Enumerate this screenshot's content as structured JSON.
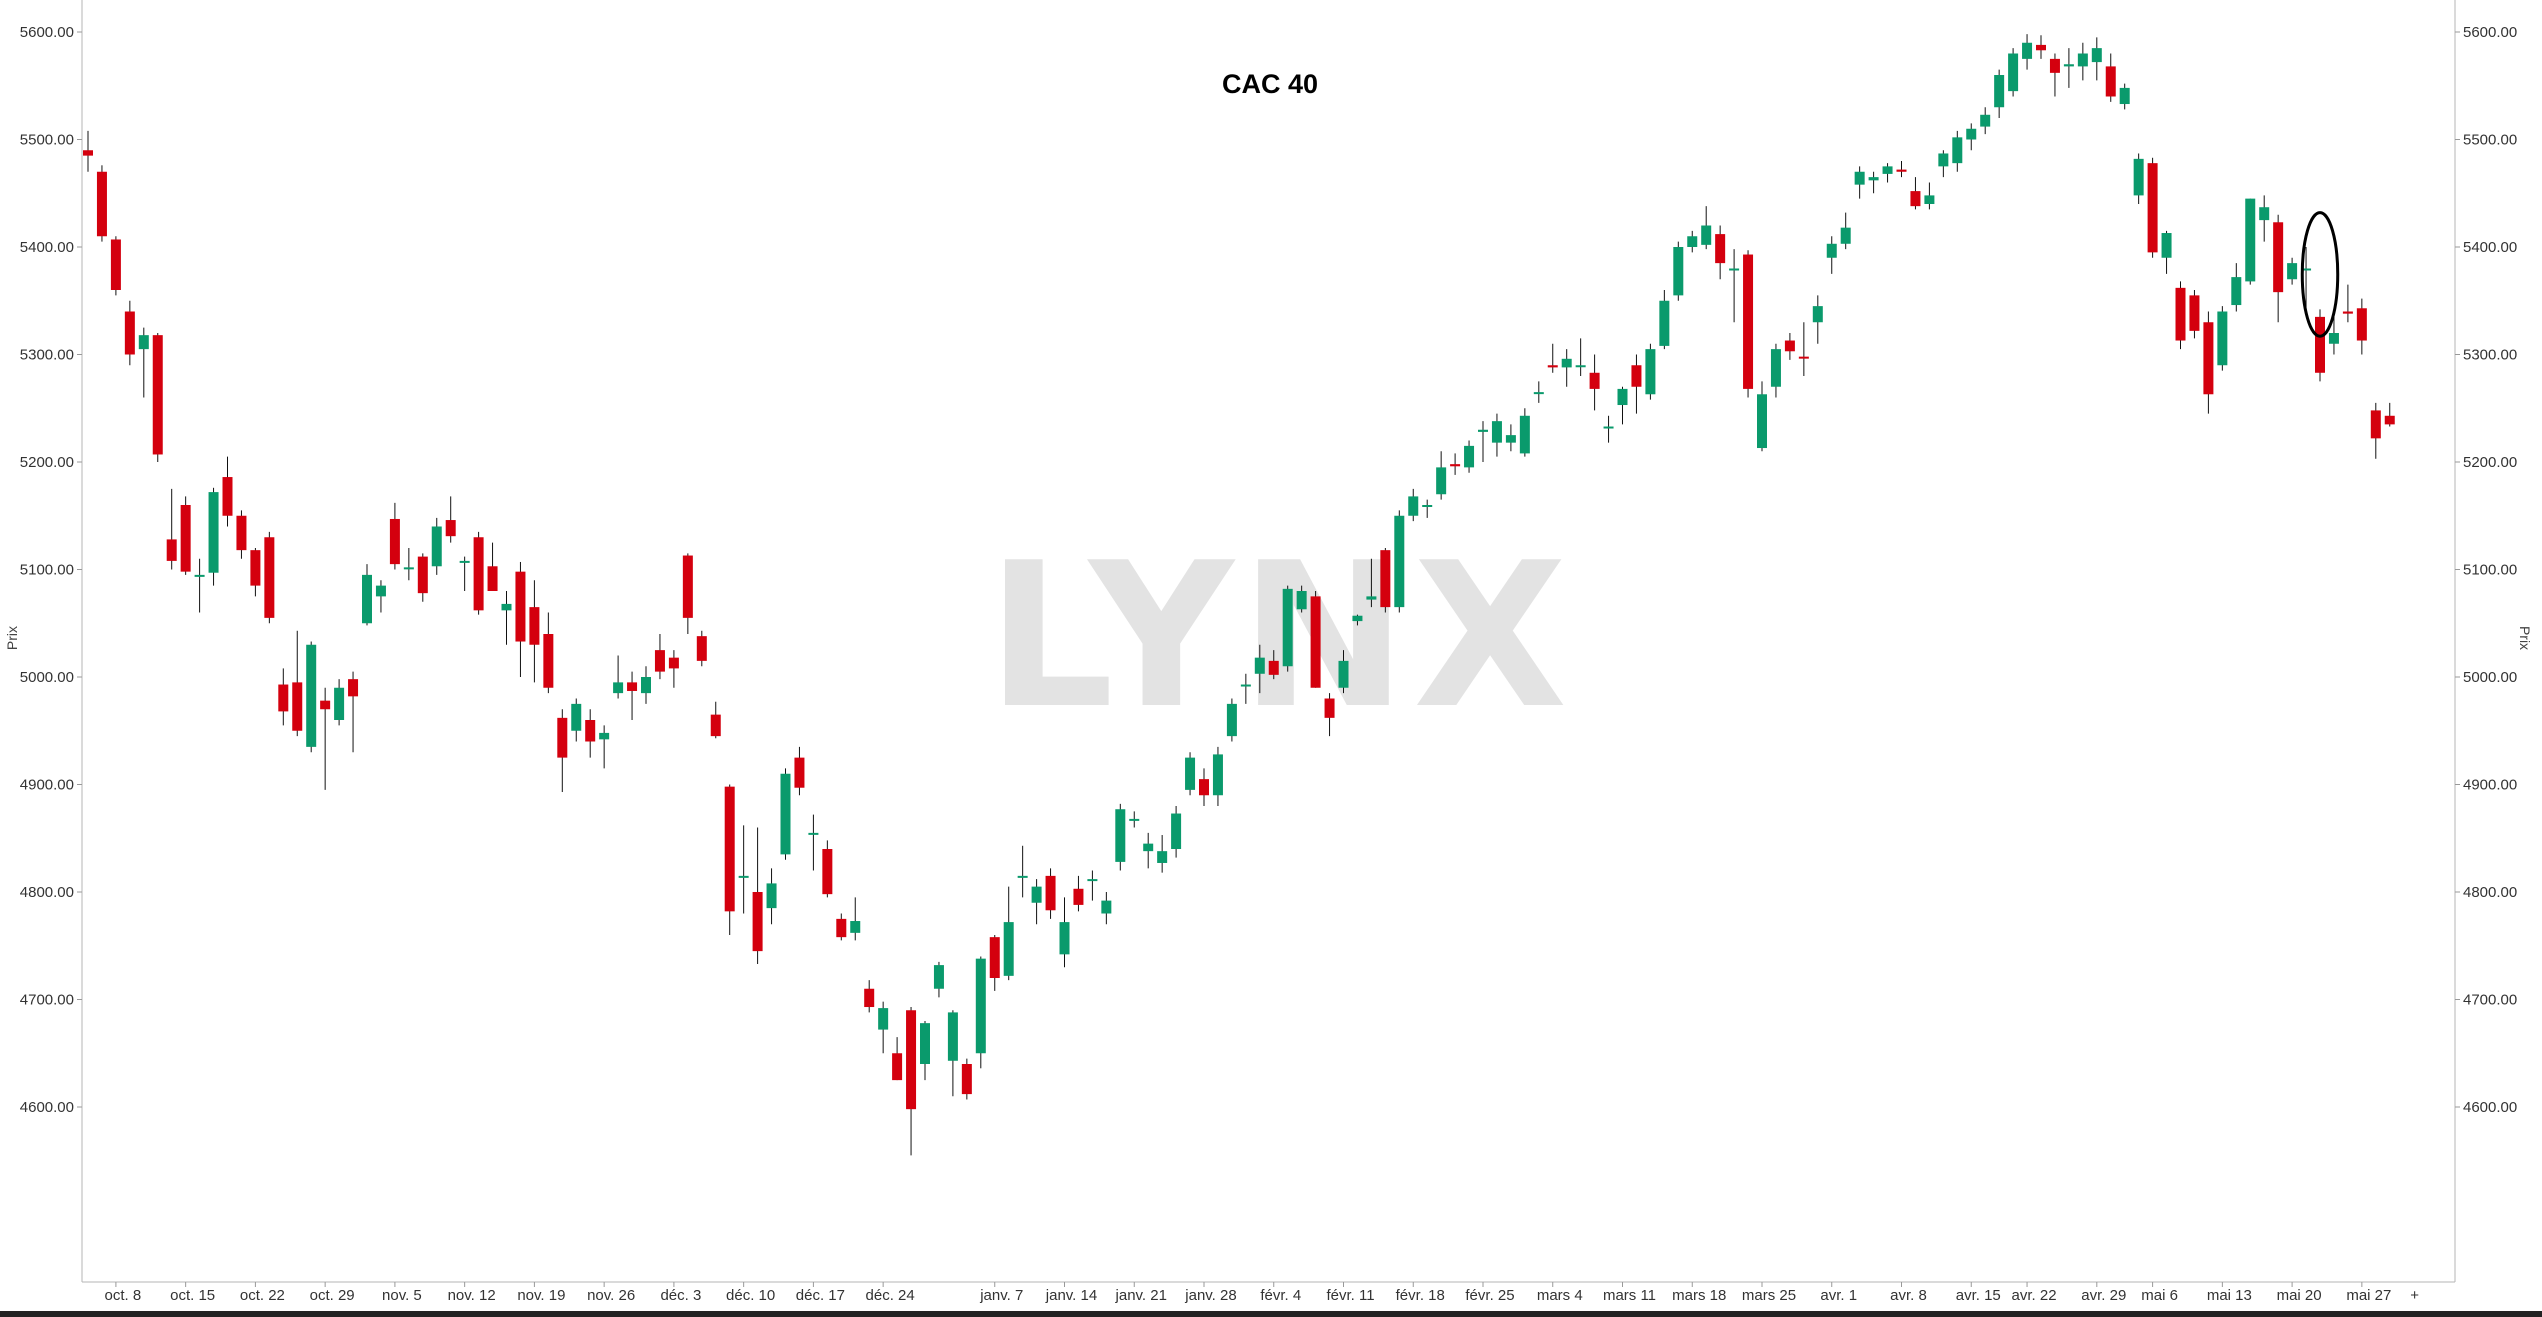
{
  "chart_data": {
    "type": "candlestick",
    "title": "CAC 40",
    "watermark": "LYNX",
    "ylabel_left": "Prix",
    "ylabel_right": "Prix",
    "ylim": [
      4520,
      5600
    ],
    "yticks": [
      "4600.00",
      "4700.00",
      "4800.00",
      "4900.00",
      "5000.00",
      "5100.00",
      "5200.00",
      "5300.00",
      "5400.00",
      "5500.00",
      "5600.00"
    ],
    "xtick_labels": [
      {
        "label": "oct. 8",
        "index": 2
      },
      {
        "label": "oct. 15",
        "index": 7
      },
      {
        "label": "oct. 22",
        "index": 12
      },
      {
        "label": "oct. 29",
        "index": 17
      },
      {
        "label": "nov. 5",
        "index": 22
      },
      {
        "label": "nov. 12",
        "index": 27
      },
      {
        "label": "nov. 19",
        "index": 32
      },
      {
        "label": "nov. 26",
        "index": 37
      },
      {
        "label": "déc. 3",
        "index": 42
      },
      {
        "label": "déc. 10",
        "index": 47
      },
      {
        "label": "déc. 17",
        "index": 52
      },
      {
        "label": "déc. 24",
        "index": 57
      },
      {
        "label": "janv. 7",
        "index": 65
      },
      {
        "label": "janv. 14",
        "index": 70
      },
      {
        "label": "janv. 21",
        "index": 75
      },
      {
        "label": "janv. 28",
        "index": 80
      },
      {
        "label": "févr. 4",
        "index": 85
      },
      {
        "label": "févr. 11",
        "index": 90
      },
      {
        "label": "févr. 18",
        "index": 95
      },
      {
        "label": "févr. 25",
        "index": 100
      },
      {
        "label": "mars 4",
        "index": 105
      },
      {
        "label": "mars 11",
        "index": 110
      },
      {
        "label": "mars 18",
        "index": 115
      },
      {
        "label": "mars 25",
        "index": 120
      },
      {
        "label": "avr. 1",
        "index": 125
      },
      {
        "label": "avr. 8",
        "index": 130
      },
      {
        "label": "avr. 15",
        "index": 135
      },
      {
        "label": "avr. 22",
        "index": 139
      },
      {
        "label": "avr. 29",
        "index": 144
      },
      {
        "label": "mai 6",
        "index": 148
      },
      {
        "label": "mai 13",
        "index": 153
      },
      {
        "label": "mai 20",
        "index": 158
      },
      {
        "label": "mai 27",
        "index": 163
      }
    ],
    "end_marker": "+",
    "colors": {
      "up": "#0a9a6c",
      "down": "#d4000e",
      "wick": "#111111",
      "axis": "#999999",
      "annotation": "#000000"
    },
    "annotation": {
      "type": "ellipse",
      "center_index": 160,
      "center_price": 5370,
      "half_width_bars": 1.2,
      "price_top": 5432,
      "price_bottom": 5317
    },
    "candles": [
      {
        "o": 5490,
        "h": 5508,
        "l": 5470,
        "c": 5485
      },
      {
        "o": 5470,
        "h": 5476,
        "l": 5405,
        "c": 5410
      },
      {
        "o": 5407,
        "h": 5410,
        "l": 5355,
        "c": 5360
      },
      {
        "o": 5340,
        "h": 5350,
        "l": 5290,
        "c": 5300
      },
      {
        "o": 5305,
        "h": 5325,
        "l": 5260,
        "c": 5318
      },
      {
        "o": 5318,
        "h": 5320,
        "l": 5200,
        "c": 5207
      },
      {
        "o": 5128,
        "h": 5175,
        "l": 5100,
        "c": 5108
      },
      {
        "o": 5160,
        "h": 5168,
        "l": 5095,
        "c": 5098
      },
      {
        "o": 5095,
        "h": 5110,
        "l": 5060,
        "c": 5095
      },
      {
        "o": 5097,
        "h": 5176,
        "l": 5085,
        "c": 5172
      },
      {
        "o": 5186,
        "h": 5205,
        "l": 5140,
        "c": 5150
      },
      {
        "o": 5150,
        "h": 5155,
        "l": 5110,
        "c": 5118
      },
      {
        "o": 5118,
        "h": 5120,
        "l": 5075,
        "c": 5085
      },
      {
        "o": 5130,
        "h": 5135,
        "l": 5050,
        "c": 5055
      },
      {
        "o": 4993,
        "h": 5008,
        "l": 4955,
        "c": 4968
      },
      {
        "o": 4995,
        "h": 5043,
        "l": 4945,
        "c": 4950
      },
      {
        "o": 4935,
        "h": 5033,
        "l": 4930,
        "c": 5030
      },
      {
        "o": 4978,
        "h": 4990,
        "l": 4895,
        "c": 4970
      },
      {
        "o": 4960,
        "h": 4998,
        "l": 4955,
        "c": 4990
      },
      {
        "o": 4998,
        "h": 5005,
        "l": 4930,
        "c": 4982
      },
      {
        "o": 5050,
        "h": 5105,
        "l": 5048,
        "c": 5095
      },
      {
        "o": 5075,
        "h": 5090,
        "l": 5060,
        "c": 5085
      },
      {
        "o": 5147,
        "h": 5162,
        "l": 5100,
        "c": 5105
      },
      {
        "o": 5102,
        "h": 5120,
        "l": 5090,
        "c": 5102
      },
      {
        "o": 5112,
        "h": 5115,
        "l": 5070,
        "c": 5078
      },
      {
        "o": 5103,
        "h": 5148,
        "l": 5095,
        "c": 5140
      },
      {
        "o": 5146,
        "h": 5168,
        "l": 5125,
        "c": 5131
      },
      {
        "o": 5107,
        "h": 5112,
        "l": 5080,
        "c": 5108
      },
      {
        "o": 5130,
        "h": 5135,
        "l": 5058,
        "c": 5062
      },
      {
        "o": 5103,
        "h": 5125,
        "l": 5080,
        "c": 5080
      },
      {
        "o": 5062,
        "h": 5080,
        "l": 5030,
        "c": 5068
      },
      {
        "o": 5098,
        "h": 5107,
        "l": 5000,
        "c": 5033
      },
      {
        "o": 5065,
        "h": 5090,
        "l": 4995,
        "c": 5030
      },
      {
        "o": 5040,
        "h": 5060,
        "l": 4985,
        "c": 4990
      },
      {
        "o": 4962,
        "h": 4970,
        "l": 4893,
        "c": 4925
      },
      {
        "o": 4950,
        "h": 4980,
        "l": 4940,
        "c": 4975
      },
      {
        "o": 4960,
        "h": 4970,
        "l": 4925,
        "c": 4940
      },
      {
        "o": 4942,
        "h": 4955,
        "l": 4915,
        "c": 4948
      },
      {
        "o": 4985,
        "h": 5020,
        "l": 4980,
        "c": 4995
      },
      {
        "o": 4995,
        "h": 5005,
        "l": 4960,
        "c": 4987
      },
      {
        "o": 4985,
        "h": 5010,
        "l": 4975,
        "c": 5000
      },
      {
        "o": 5025,
        "h": 5040,
        "l": 4998,
        "c": 5005
      },
      {
        "o": 5018,
        "h": 5025,
        "l": 4990,
        "c": 5008
      },
      {
        "o": 5113,
        "h": 5115,
        "l": 5040,
        "c": 5055
      },
      {
        "o": 5038,
        "h": 5043,
        "l": 5010,
        "c": 5015
      },
      {
        "o": 4965,
        "h": 4977,
        "l": 4943,
        "c": 4945
      },
      {
        "o": 4898,
        "h": 4900,
        "l": 4760,
        "c": 4782
      },
      {
        "o": 4815,
        "h": 4862,
        "l": 4780,
        "c": 4815
      },
      {
        "o": 4800,
        "h": 4860,
        "l": 4733,
        "c": 4745
      },
      {
        "o": 4785,
        "h": 4822,
        "l": 4770,
        "c": 4808
      },
      {
        "o": 4835,
        "h": 4915,
        "l": 4830,
        "c": 4910
      },
      {
        "o": 4925,
        "h": 4935,
        "l": 4890,
        "c": 4897
      },
      {
        "o": 4855,
        "h": 4872,
        "l": 4820,
        "c": 4855
      },
      {
        "o": 4840,
        "h": 4848,
        "l": 4795,
        "c": 4798
      },
      {
        "o": 4775,
        "h": 4780,
        "l": 4755,
        "c": 4758
      },
      {
        "o": 4762,
        "h": 4795,
        "l": 4755,
        "c": 4773
      },
      {
        "o": 4710,
        "h": 4718,
        "l": 4688,
        "c": 4693
      },
      {
        "o": 4672,
        "h": 4698,
        "l": 4650,
        "c": 4692
      },
      {
        "o": 4650,
        "h": 4665,
        "l": 4625,
        "c": 4625
      },
      {
        "o": 4690,
        "h": 4693,
        "l": 4555,
        "c": 4598
      },
      {
        "o": 4640,
        "h": 4680,
        "l": 4625,
        "c": 4678
      },
      {
        "o": 4710,
        "h": 4735,
        "l": 4702,
        "c": 4732
      },
      {
        "o": 4643,
        "h": 4690,
        "l": 4610,
        "c": 4688
      },
      {
        "o": 4640,
        "h": 4645,
        "l": 4607,
        "c": 4612
      },
      {
        "o": 4650,
        "h": 4740,
        "l": 4636,
        "c": 4738
      },
      {
        "o": 4758,
        "h": 4760,
        "l": 4708,
        "c": 4720
      },
      {
        "o": 4722,
        "h": 4805,
        "l": 4718,
        "c": 4772
      },
      {
        "o": 4815,
        "h": 4843,
        "l": 4795,
        "c": 4815
      },
      {
        "o": 4790,
        "h": 4812,
        "l": 4770,
        "c": 4805
      },
      {
        "o": 4815,
        "h": 4822,
        "l": 4775,
        "c": 4783
      },
      {
        "o": 4742,
        "h": 4795,
        "l": 4730,
        "c": 4772
      },
      {
        "o": 4803,
        "h": 4815,
        "l": 4782,
        "c": 4788
      },
      {
        "o": 4812,
        "h": 4820,
        "l": 4792,
        "c": 4812
      },
      {
        "o": 4780,
        "h": 4800,
        "l": 4770,
        "c": 4792
      },
      {
        "o": 4828,
        "h": 4882,
        "l": 4820,
        "c": 4877
      },
      {
        "o": 4868,
        "h": 4875,
        "l": 4860,
        "c": 4868
      },
      {
        "o": 4838,
        "h": 4855,
        "l": 4822,
        "c": 4845
      },
      {
        "o": 4827,
        "h": 4853,
        "l": 4818,
        "c": 4838
      },
      {
        "o": 4840,
        "h": 4880,
        "l": 4832,
        "c": 4873
      },
      {
        "o": 4895,
        "h": 4930,
        "l": 4890,
        "c": 4925
      },
      {
        "o": 4905,
        "h": 4915,
        "l": 4880,
        "c": 4890
      },
      {
        "o": 4890,
        "h": 4935,
        "l": 4880,
        "c": 4928
      },
      {
        "o": 4945,
        "h": 4980,
        "l": 4940,
        "c": 4975
      },
      {
        "o": 4993,
        "h": 5003,
        "l": 4975,
        "c": 4993
      },
      {
        "o": 5003,
        "h": 5030,
        "l": 4985,
        "c": 5018
      },
      {
        "o": 5015,
        "h": 5025,
        "l": 4998,
        "c": 5002
      },
      {
        "o": 5010,
        "h": 5085,
        "l": 5005,
        "c": 5082
      },
      {
        "o": 5063,
        "h": 5085,
        "l": 5060,
        "c": 5080
      },
      {
        "o": 5075,
        "h": 5080,
        "l": 4990,
        "c": 4990
      },
      {
        "o": 4980,
        "h": 4985,
        "l": 4945,
        "c": 4962
      },
      {
        "o": 4990,
        "h": 5025,
        "l": 4985,
        "c": 5015
      },
      {
        "o": 5052,
        "h": 5058,
        "l": 5048,
        "c": 5057
      },
      {
        "o": 5072,
        "h": 5110,
        "l": 5065,
        "c": 5075
      },
      {
        "o": 5118,
        "h": 5120,
        "l": 5060,
        "c": 5065
      },
      {
        "o": 5065,
        "h": 5155,
        "l": 5060,
        "c": 5150
      },
      {
        "o": 5150,
        "h": 5175,
        "l": 5145,
        "c": 5168
      },
      {
        "o": 5160,
        "h": 5165,
        "l": 5148,
        "c": 5160
      },
      {
        "o": 5170,
        "h": 5210,
        "l": 5165,
        "c": 5195
      },
      {
        "o": 5198,
        "h": 5208,
        "l": 5188,
        "c": 5196
      },
      {
        "o": 5195,
        "h": 5220,
        "l": 5190,
        "c": 5215
      },
      {
        "o": 5228,
        "h": 5238,
        "l": 5200,
        "c": 5230
      },
      {
        "o": 5218,
        "h": 5245,
        "l": 5205,
        "c": 5238
      },
      {
        "o": 5218,
        "h": 5235,
        "l": 5210,
        "c": 5225
      },
      {
        "o": 5208,
        "h": 5250,
        "l": 5205,
        "c": 5243
      },
      {
        "o": 5265,
        "h": 5275,
        "l": 5255,
        "c": 5265
      },
      {
        "o": 5290,
        "h": 5310,
        "l": 5283,
        "c": 5288
      },
      {
        "o": 5288,
        "h": 5305,
        "l": 5270,
        "c": 5296
      },
      {
        "o": 5290,
        "h": 5315,
        "l": 5280,
        "c": 5290
      },
      {
        "o": 5283,
        "h": 5300,
        "l": 5248,
        "c": 5268
      },
      {
        "o": 5233,
        "h": 5243,
        "l": 5218,
        "c": 5233
      },
      {
        "o": 5253,
        "h": 5270,
        "l": 5235,
        "c": 5268
      },
      {
        "o": 5290,
        "h": 5300,
        "l": 5245,
        "c": 5270
      },
      {
        "o": 5263,
        "h": 5310,
        "l": 5258,
        "c": 5305
      },
      {
        "o": 5308,
        "h": 5360,
        "l": 5305,
        "c": 5350
      },
      {
        "o": 5355,
        "h": 5405,
        "l": 5350,
        "c": 5400
      },
      {
        "o": 5400,
        "h": 5415,
        "l": 5395,
        "c": 5410
      },
      {
        "o": 5402,
        "h": 5438,
        "l": 5398,
        "c": 5420
      },
      {
        "o": 5412,
        "h": 5420,
        "l": 5370,
        "c": 5385
      },
      {
        "o": 5380,
        "h": 5398,
        "l": 5330,
        "c": 5380
      },
      {
        "o": 5393,
        "h": 5397,
        "l": 5260,
        "c": 5268
      },
      {
        "o": 5213,
        "h": 5275,
        "l": 5210,
        "c": 5263
      },
      {
        "o": 5270,
        "h": 5310,
        "l": 5260,
        "c": 5305
      },
      {
        "o": 5313,
        "h": 5320,
        "l": 5295,
        "c": 5303
      },
      {
        "o": 5298,
        "h": 5330,
        "l": 5280,
        "c": 5297
      },
      {
        "o": 5330,
        "h": 5355,
        "l": 5310,
        "c": 5345
      },
      {
        "o": 5390,
        "h": 5410,
        "l": 5375,
        "c": 5403
      },
      {
        "o": 5403,
        "h": 5432,
        "l": 5398,
        "c": 5418
      },
      {
        "o": 5458,
        "h": 5475,
        "l": 5445,
        "c": 5470
      },
      {
        "o": 5462,
        "h": 5470,
        "l": 5450,
        "c": 5465
      },
      {
        "o": 5468,
        "h": 5478,
        "l": 5460,
        "c": 5475
      },
      {
        "o": 5472,
        "h": 5480,
        "l": 5465,
        "c": 5470
      },
      {
        "o": 5452,
        "h": 5465,
        "l": 5435,
        "c": 5438
      },
      {
        "o": 5440,
        "h": 5460,
        "l": 5435,
        "c": 5448
      },
      {
        "o": 5475,
        "h": 5490,
        "l": 5465,
        "c": 5487
      },
      {
        "o": 5478,
        "h": 5508,
        "l": 5470,
        "c": 5502
      },
      {
        "o": 5500,
        "h": 5515,
        "l": 5490,
        "c": 5510
      },
      {
        "o": 5512,
        "h": 5530,
        "l": 5505,
        "c": 5523
      },
      {
        "o": 5530,
        "h": 5565,
        "l": 5520,
        "c": 5560
      },
      {
        "o": 5545,
        "h": 5585,
        "l": 5540,
        "c": 5580
      },
      {
        "o": 5575,
        "h": 5598,
        "l": 5565,
        "c": 5590
      },
      {
        "o": 5588,
        "h": 5597,
        "l": 5575,
        "c": 5583
      },
      {
        "o": 5575,
        "h": 5580,
        "l": 5540,
        "c": 5562
      },
      {
        "o": 5568,
        "h": 5585,
        "l": 5548,
        "c": 5570
      },
      {
        "o": 5568,
        "h": 5590,
        "l": 5555,
        "c": 5580
      },
      {
        "o": 5572,
        "h": 5595,
        "l": 5555,
        "c": 5585
      },
      {
        "o": 5568,
        "h": 5580,
        "l": 5535,
        "c": 5540
      },
      {
        "o": 5533,
        "h": 5552,
        "l": 5528,
        "c": 5548
      },
      {
        "o": 5448,
        "h": 5487,
        "l": 5440,
        "c": 5482
      },
      {
        "o": 5478,
        "h": 5483,
        "l": 5390,
        "c": 5395
      },
      {
        "o": 5390,
        "h": 5415,
        "l": 5375,
        "c": 5413
      },
      {
        "o": 5362,
        "h": 5368,
        "l": 5305,
        "c": 5313
      },
      {
        "o": 5355,
        "h": 5360,
        "l": 5315,
        "c": 5322
      },
      {
        "o": 5330,
        "h": 5340,
        "l": 5245,
        "c": 5263
      },
      {
        "o": 5290,
        "h": 5345,
        "l": 5285,
        "c": 5340
      },
      {
        "o": 5346,
        "h": 5385,
        "l": 5340,
        "c": 5372
      },
      {
        "o": 5368,
        "h": 5445,
        "l": 5365,
        "c": 5445
      },
      {
        "o": 5425,
        "h": 5448,
        "l": 5405,
        "c": 5437
      },
      {
        "o": 5423,
        "h": 5430,
        "l": 5330,
        "c": 5358
      },
      {
        "o": 5370,
        "h": 5390,
        "l": 5365,
        "c": 5385
      },
      {
        "o": 5380,
        "h": 5400,
        "l": 5340,
        "c": 5380
      },
      {
        "o": 5335,
        "h": 5342,
        "l": 5275,
        "c": 5283
      },
      {
        "o": 5310,
        "h": 5335,
        "l": 5300,
        "c": 5320
      },
      {
        "o": 5340,
        "h": 5365,
        "l": 5330,
        "c": 5338
      },
      {
        "o": 5343,
        "h": 5352,
        "l": 5300,
        "c": 5313
      },
      {
        "o": 5248,
        "h": 5255,
        "l": 5203,
        "c": 5222
      },
      {
        "o": 5243,
        "h": 5255,
        "l": 5233,
        "c": 5235
      }
    ]
  }
}
